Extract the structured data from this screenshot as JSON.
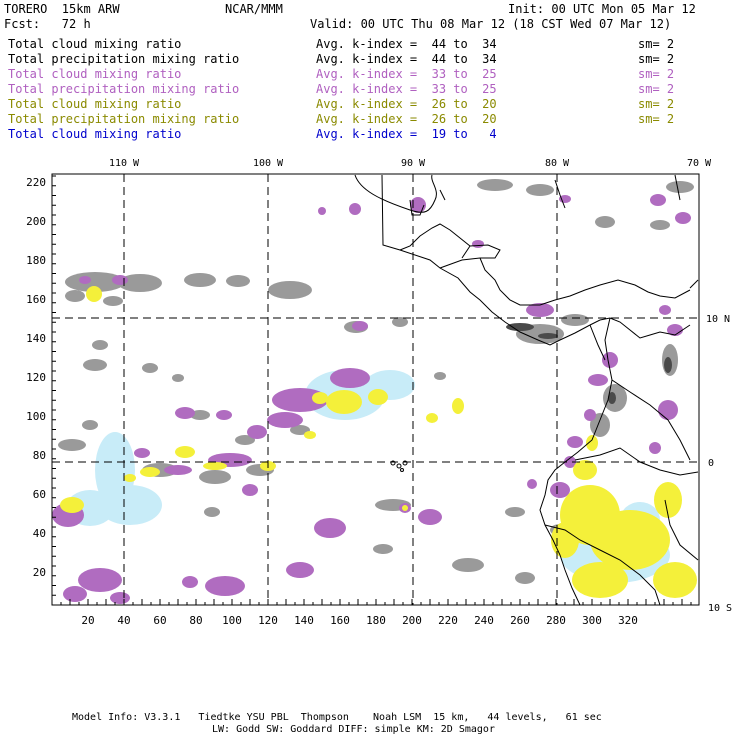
{
  "header": {
    "model": "TORERO  15km ARW",
    "org": "NCAR/MMM",
    "init": "Init: 00 UTC Mon 05 Mar 12",
    "fcst": "Fcst:   72 h",
    "valid": "Valid: 00 UTC Thu 08 Mar 12 (18 CST Wed 07 Mar 12)"
  },
  "legend": [
    {
      "field": "Total cloud mixing ratio",
      "avg": "Avg. k-index =  44 to  34",
      "sm": "sm= 2",
      "color": "#000000"
    },
    {
      "field": "Total precipitation mixing ratio",
      "avg": "Avg. k-index =  44 to  34",
      "sm": "sm= 2",
      "color": "#000000"
    },
    {
      "field": "Total cloud mixing ratio",
      "avg": "Avg. k-index =  33 to  25",
      "sm": "sm= 2",
      "color": "#b060c0"
    },
    {
      "field": "Total precipitation mixing ratio",
      "avg": "Avg. k-index =  33 to  25",
      "sm": "sm= 2",
      "color": "#b060c0"
    },
    {
      "field": "Total cloud mixing ratio",
      "avg": "Avg. k-index =  26 to  20",
      "sm": "sm= 2",
      "color": "#8a8a00"
    },
    {
      "field": "Total precipitation mixing ratio",
      "avg": "Avg. k-index =  26 to  20",
      "sm": "sm= 2",
      "color": "#8a8a00"
    },
    {
      "field": "Total cloud mixing ratio",
      "avg": "Avg. k-index =  19 to   4",
      "sm": "",
      "color": "#0000cc"
    }
  ],
  "axes": {
    "lon_labels": [
      "110 W",
      "100 W",
      "90 W",
      "80 W",
      "70 W"
    ],
    "lat_labels": [
      "10 N",
      "0",
      "10 S"
    ],
    "x_ticks": [
      "20",
      "40",
      "60",
      "80",
      "100",
      "120",
      "140",
      "160",
      "180",
      "200",
      "220",
      "240",
      "260",
      "280",
      "300",
      "320"
    ],
    "y_ticks": [
      "20",
      "40",
      "60",
      "80",
      "100",
      "120",
      "140",
      "160",
      "180",
      "200",
      "220"
    ]
  },
  "colors": {
    "gray_cloud": "#9a9a9a",
    "dark_cloud": "#555555",
    "purple": "#b06cc0",
    "yellow": "#f4f03a",
    "light_blue": "#c8ecf8"
  },
  "footer": {
    "line1": "Model Info: V3.3.1   Tiedtke YSU PBL  Thompson    Noah LSM  15 km,   44 levels,   61 sec",
    "line2": "LW: Godd SW: Goddard DIFF: simple KM: 2D Smagor"
  }
}
